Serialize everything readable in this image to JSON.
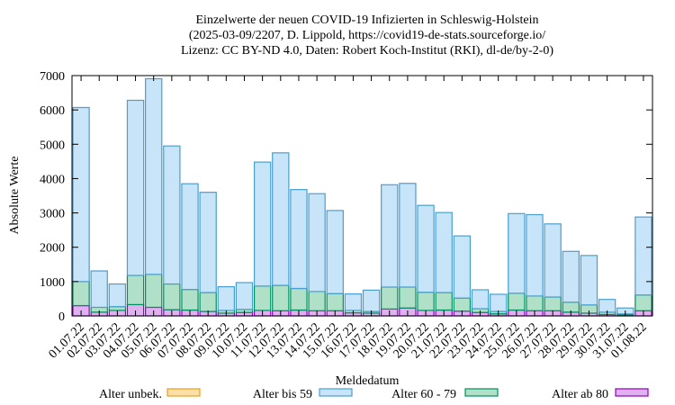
{
  "chart_data": {
    "type": "bar",
    "stacked": true,
    "title_lines": [
      "Einzelwerte der neuen COVID-19 Infizierten in Schleswig-Holstein",
      "(2025-03-09/2207, D. Lippold, https://covid19-de-stats.sourceforge.io/",
      "Lizenz: CC BY-ND 4.0, Daten: Robert Koch-Institut (RKI), dl-de/by-2-0)"
    ],
    "xlabel": "Meldedatum",
    "ylabel": "Absolute Werte",
    "ylim": [
      0,
      7000
    ],
    "yticks": [
      "0",
      "1000",
      "2000",
      "3000",
      "4000",
      "5000",
      "6000",
      "7000"
    ],
    "categories": [
      "01.07.22",
      "02.07.22",
      "03.07.22",
      "04.07.22",
      "05.07.22",
      "06.07.22",
      "07.07.22",
      "08.07.22",
      "09.07.22",
      "10.07.22",
      "11.07.22",
      "12.07.22",
      "13.07.22",
      "14.07.22",
      "15.07.22",
      "16.07.22",
      "17.07.22",
      "18.07.22",
      "19.07.22",
      "20.07.22",
      "21.07.22",
      "22.07.22",
      "23.07.22",
      "24.07.22",
      "25.07.22",
      "26.07.22",
      "27.07.22",
      "28.07.22",
      "29.07.22",
      "30.07.22",
      "31.07.22",
      "01.08.22"
    ],
    "series": [
      {
        "name": "Alter ab 80",
        "color": "#e0b0f0",
        "stroke": "#8e00c0",
        "values": [
          300,
          110,
          160,
          330,
          250,
          180,
          170,
          130,
          80,
          100,
          160,
          150,
          170,
          150,
          150,
          90,
          80,
          200,
          230,
          160,
          170,
          140,
          100,
          60,
          170,
          150,
          150,
          110,
          80,
          40,
          30,
          150
        ]
      },
      {
        "name": "Alter 60 - 79",
        "color": "#b0e0c8",
        "stroke": "#009060",
        "values": [
          700,
          140,
          110,
          850,
          960,
          750,
          600,
          550,
          80,
          90,
          710,
          740,
          630,
          560,
          500,
          70,
          50,
          640,
          610,
          530,
          510,
          380,
          110,
          70,
          490,
          430,
          400,
          290,
          240,
          70,
          30,
          460
        ]
      },
      {
        "name": "Alter bis 59",
        "color": "#c8e4f8",
        "stroke": "#4a9fd0",
        "values": [
          5070,
          1060,
          660,
          5100,
          5700,
          4020,
          3080,
          2920,
          690,
          780,
          3610,
          3860,
          2880,
          2850,
          2420,
          480,
          620,
          2980,
          3020,
          2530,
          2330,
          1810,
          550,
          500,
          2320,
          2370,
          2130,
          1480,
          1440,
          370,
          170,
          2270
        ]
      },
      {
        "name": "Alter unbek.",
        "color": "#fde0a8",
        "stroke": "#e8a020",
        "values": [
          0,
          0,
          0,
          0,
          0,
          0,
          0,
          0,
          0,
          0,
          0,
          0,
          0,
          0,
          0,
          0,
          0,
          0,
          0,
          0,
          0,
          0,
          0,
          0,
          0,
          0,
          0,
          0,
          0,
          0,
          0,
          0
        ]
      }
    ],
    "legend_order": [
      "Alter unbek.",
      "Alter bis 59",
      "Alter 60 - 79",
      "Alter ab 80"
    ],
    "legend_placement": "bottom",
    "grid": false
  }
}
